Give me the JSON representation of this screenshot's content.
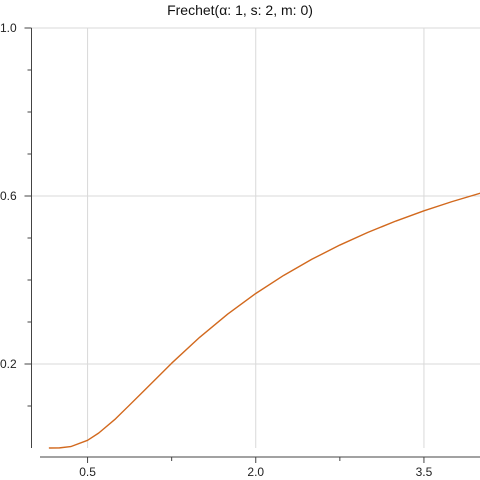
{
  "chart_data": {
    "type": "line",
    "title": "Frechet(α: 1, s: 2, m: 0)",
    "xlabel": "",
    "ylabel": "",
    "xlim": [
      0.0,
      4.0
    ],
    "ylim": [
      0.0,
      1.0
    ],
    "x_ticks": [
      0.5,
      2.0,
      3.5
    ],
    "x_tick_labels": [
      "0.5",
      "2.0",
      "3.5"
    ],
    "y_ticks": [
      0.2,
      0.6,
      1.0
    ],
    "y_tick_labels": [
      "0.2",
      "0.6",
      "1.0"
    ],
    "grid": true,
    "series_color": "#d2691e",
    "series": [
      {
        "name": "",
        "x": [
          0.16,
          0.25,
          0.35,
          0.5,
          0.6,
          0.75,
          1.0,
          1.25,
          1.5,
          1.75,
          2.0,
          2.25,
          2.5,
          2.75,
          3.0,
          3.25,
          3.5,
          3.75,
          4.0
        ],
        "y": [
          0.0,
          0.0003,
          0.0033,
          0.0183,
          0.0357,
          0.0695,
          0.1353,
          0.2019,
          0.2636,
          0.3189,
          0.3679,
          0.4111,
          0.4493,
          0.4832,
          0.5134,
          0.5404,
          0.5647,
          0.5866,
          0.6065
        ]
      }
    ]
  }
}
